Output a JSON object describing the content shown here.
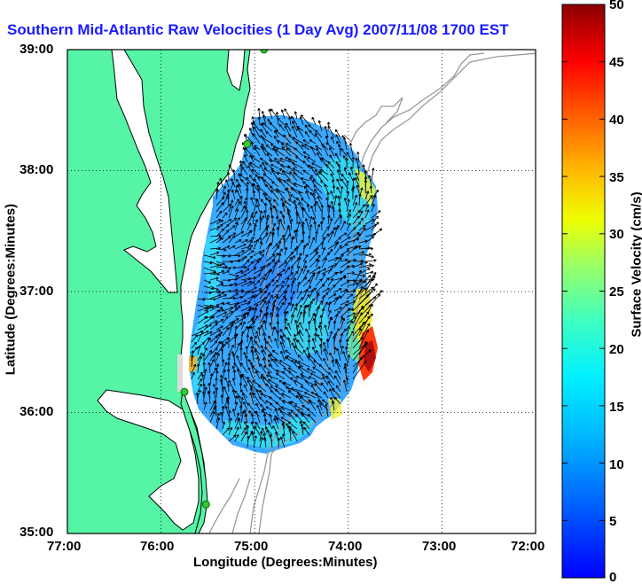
{
  "title": "Southern Mid-Atlantic Raw Velocities (1 Day Avg) 2007/11/08 1700 EST",
  "xlabel": "Longitude (Degrees:Minutes)",
  "ylabel": "Latitude (Degrees:Minutes)",
  "colorbar_label": "Surface Velocity (cm/s)",
  "x_ticks": [
    "77:00",
    "76:00",
    "75:00",
    "74:00",
    "73:00",
    "72:00"
  ],
  "y_ticks": [
    "39:00",
    "38:00",
    "37:00",
    "36:00",
    "35:00"
  ],
  "colorbar_ticks": [
    "50",
    "45",
    "40",
    "35",
    "30",
    "25",
    "20",
    "15",
    "10",
    "5",
    "0"
  ],
  "colors": {
    "land": "#55f5a5",
    "ocean": "#ffffff",
    "title": "#1a1aff",
    "bathymetry": "#999999",
    "grid": "#000000",
    "station": "#2ecc2e"
  },
  "map": {
    "lon_range": [
      -77,
      -72
    ],
    "lat_range": [
      35,
      39
    ],
    "grid": true,
    "velocity_range_cm_s": [
      0,
      50
    ],
    "colormap": "jet",
    "stations": [
      {
        "lon": -74.9,
        "lat": 39.0
      },
      {
        "lon": -75.08,
        "lat": 38.22
      },
      {
        "lon": -75.75,
        "lat": 36.17
      },
      {
        "lon": -75.52,
        "lat": 35.24
      }
    ]
  }
}
